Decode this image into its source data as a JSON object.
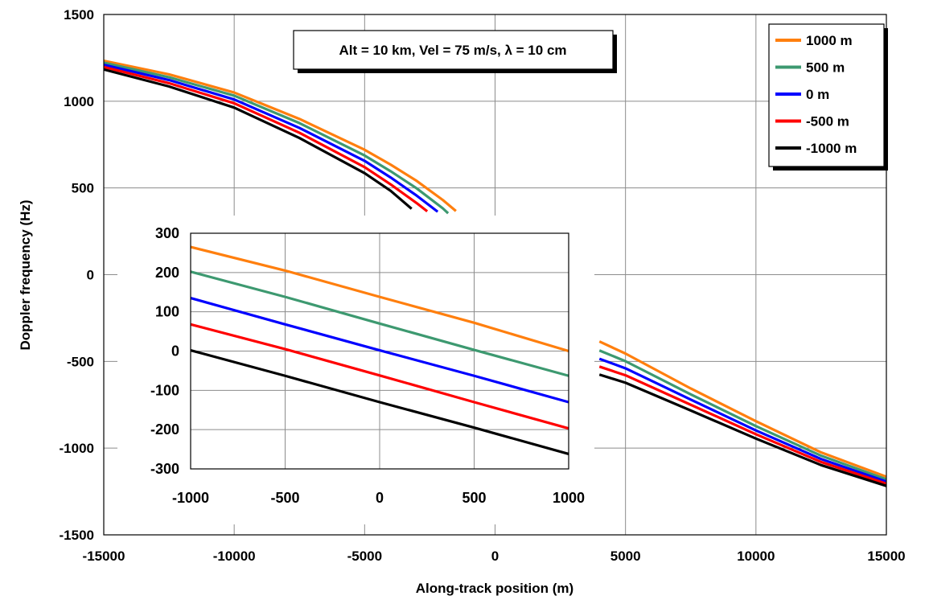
{
  "chart_data": [
    {
      "type": "line",
      "title": "",
      "xlabel": "Along-track position (m)",
      "ylabel": "Doppler frequency (Hz)",
      "xlim": [
        -15000,
        15000
      ],
      "ylim": [
        -1500,
        1500
      ],
      "x_ticks": [
        -15000,
        -10000,
        -5000,
        0,
        5000,
        10000,
        15000
      ],
      "y_ticks": [
        -1500,
        -1000,
        -500,
        0,
        500,
        1000,
        1500
      ],
      "x_tick_labels": [
        "-15000",
        "-10000",
        "-5000",
        "0",
        "5000",
        "10000",
        "15000"
      ],
      "y_tick_labels": [
        "-1500",
        "-1000",
        "-500",
        "0",
        "500",
        "1000",
        "1500"
      ],
      "grid": true,
      "legend_position": "top-right",
      "annotation": "Alt = 10 km, Vel = 75 m/s, λ = 10 cm",
      "series": [
        {
          "name": "1000 m",
          "color": "#ff7f0e",
          "x": [
            -15000,
            -12500,
            -10000,
            -7500,
            -5000,
            -4000,
            -3000,
            -2000,
            -1500,
            4000,
            5000,
            7500,
            10000,
            12500,
            15000
          ],
          "y": [
            1233,
            1155,
            1050,
            898,
            720,
            634,
            540,
            430,
            367,
            -385,
            -455,
            -656,
            -845,
            -1025,
            -1165
          ]
        },
        {
          "name": "500 m",
          "color": "#3d9970",
          "x": [
            -15000,
            -12500,
            -10000,
            -7500,
            -5000,
            -4000,
            -3000,
            -2000,
            -1800,
            4000,
            5000,
            7500,
            10000,
            12500,
            15000
          ],
          "y": [
            1222,
            1138,
            1032,
            874,
            687,
            596,
            497,
            382,
            354,
            -437,
            -499,
            -690,
            -873,
            -1044,
            -1180
          ]
        },
        {
          "name": "0 m",
          "color": "#0000ff",
          "x": [
            -15000,
            -12500,
            -10000,
            -7500,
            -5000,
            -4000,
            -3000,
            -2200,
            4000,
            5000,
            7500,
            10000,
            12500,
            15000
          ],
          "y": [
            1210,
            1122,
            1010,
            846,
            656,
            560,
            455,
            363,
            -485,
            -540,
            -720,
            -898,
            -1063,
            -1193
          ]
        },
        {
          "name": "-500 m",
          "color": "#ff0000",
          "x": [
            -15000,
            -12500,
            -10000,
            -7500,
            -5000,
            -4000,
            -3000,
            -2600,
            4000,
            5000,
            7500,
            10000,
            12500,
            15000
          ],
          "y": [
            1197,
            1104,
            988,
            818,
            620,
            520,
            412,
            365,
            -530,
            -580,
            -750,
            -920,
            -1080,
            -1205
          ]
        },
        {
          "name": "-1000 m",
          "color": "#000000",
          "x": [
            -15000,
            -12500,
            -10000,
            -7500,
            -5000,
            -4000,
            -3200,
            4000,
            5000,
            7500,
            10000,
            12500,
            15000
          ],
          "y": [
            1183,
            1085,
            963,
            788,
            585,
            483,
            380,
            -576,
            -623,
            -783,
            -945,
            -1098,
            -1218
          ]
        }
      ]
    },
    {
      "type": "line",
      "title": "",
      "xlabel": "",
      "ylabel": "",
      "xlim": [
        -1000,
        1000
      ],
      "ylim": [
        -300,
        300
      ],
      "x_ticks": [
        -1000,
        -500,
        0,
        500,
        1000
      ],
      "y_ticks": [
        -300,
        -200,
        -100,
        0,
        100,
        200,
        300
      ],
      "x_tick_labels": [
        "-1000",
        "-500",
        "0",
        "500",
        "1000"
      ],
      "y_tick_labels": [
        "-300",
        "-200",
        "-100",
        "0",
        "100",
        "200",
        "300"
      ],
      "grid": true,
      "series": [
        {
          "color": "#ff7f0e",
          "x": [
            -1000,
            -500,
            0,
            500,
            1000
          ],
          "y": [
            265,
            205,
            138,
            72,
            0
          ]
        },
        {
          "color": "#3d9970",
          "x": [
            -1000,
            -500,
            0,
            500,
            1000
          ],
          "y": [
            202,
            138,
            70,
            3,
            -63
          ]
        },
        {
          "color": "#0000ff",
          "x": [
            -1000,
            -500,
            0,
            500,
            1000
          ],
          "y": [
            135,
            68,
            2,
            -63,
            -130
          ]
        },
        {
          "color": "#ff0000",
          "x": [
            -1000,
            -500,
            0,
            500,
            1000
          ],
          "y": [
            68,
            5,
            -62,
            -130,
            -197
          ]
        },
        {
          "color": "#000000",
          "x": [
            -1000,
            -500,
            0,
            500,
            1000
          ],
          "y": [
            2,
            -63,
            -130,
            -195,
            -262
          ]
        }
      ]
    }
  ]
}
